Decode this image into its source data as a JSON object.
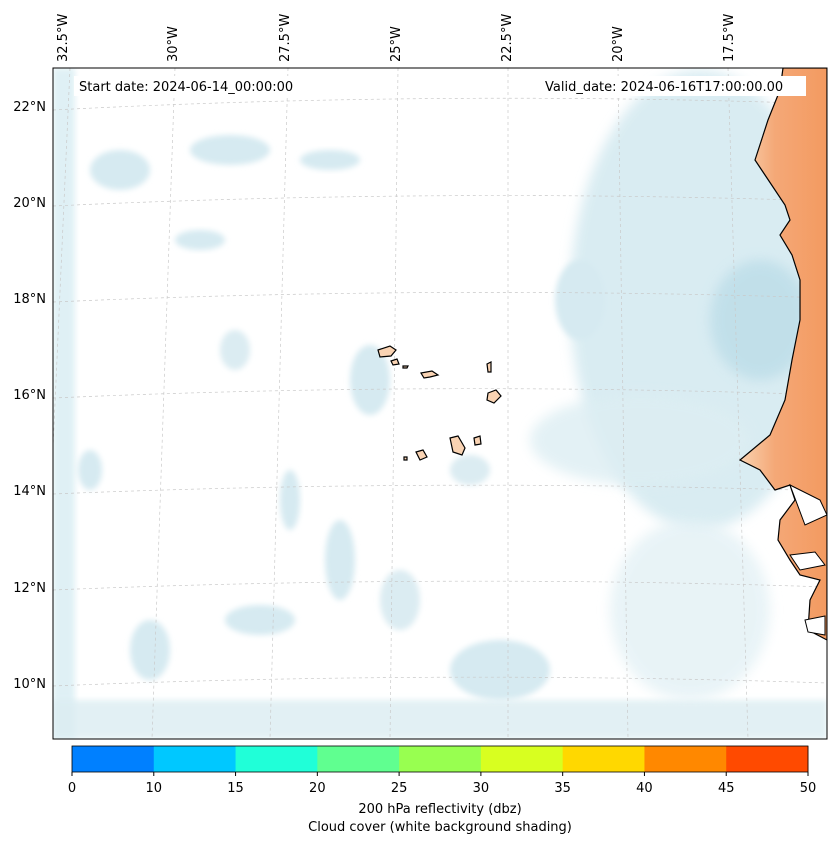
{
  "header": {
    "start_date": "Start date: 2024-06-14_00:00:00",
    "valid_date": "Valid_date: 2024-06-16T17:00:00.00"
  },
  "axes": {
    "lon_labels": [
      "32.5°W",
      "30°W",
      "27.5°W",
      "25°W",
      "22.5°W",
      "20°W",
      "17.5°W"
    ],
    "lat_labels": [
      "22°N",
      "20°N",
      "18°N",
      "16°N",
      "14°N",
      "12°N",
      "10°N"
    ]
  },
  "colorbar": {
    "ticks": [
      "0",
      "10",
      "15",
      "20",
      "25",
      "30",
      "35",
      "40",
      "45",
      "50"
    ],
    "colors": [
      "#0080ff",
      "#00c8ff",
      "#20ffd8",
      "#60ff90",
      "#98ff50",
      "#d8ff20",
      "#ffd800",
      "#ff8800",
      "#ff4a00"
    ],
    "label_line1": "200 hPa reflectivity (dbz)",
    "label_line2": "Cloud cover (white background shading)"
  },
  "colors": {
    "land": "#f5b07c",
    "cloud": "#cfe7ee",
    "grid": "#bbbbbb"
  }
}
